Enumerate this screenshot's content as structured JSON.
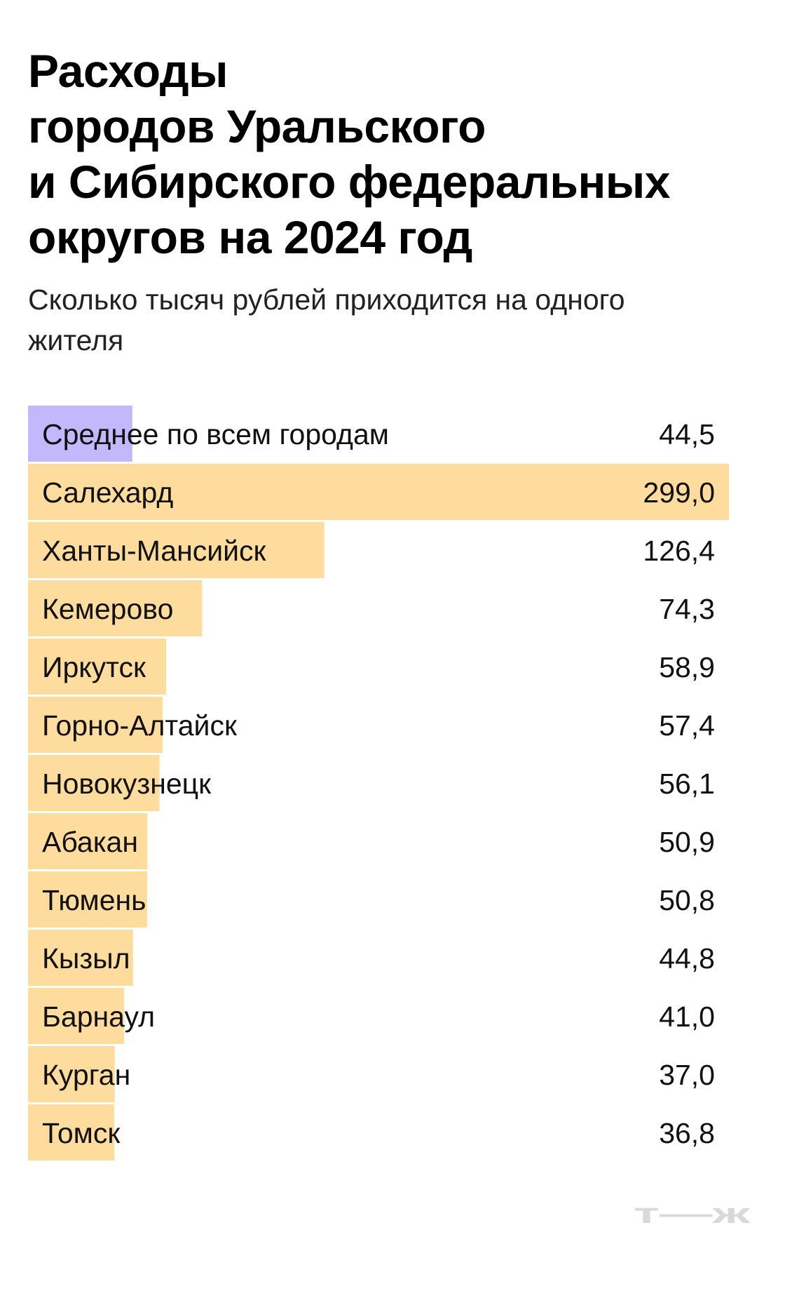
{
  "title_lines": [
    "Расходы",
    "городов Уральского",
    "и Сибирского федеральных",
    "округов на 2024 год"
  ],
  "subtitle_lines": [
    "Сколько тысяч рублей приходится на одного",
    "жителя"
  ],
  "logo": "т—ж",
  "colors": {
    "average_bar": "#c3b8fb",
    "city_bar": "#fddc9d",
    "text": "#111111",
    "logo": "#d9d9d9"
  },
  "chart_data": {
    "type": "bar",
    "orientation": "horizontal",
    "categories": [
      "Среднее по всем городам",
      "Салехард",
      "Ханты-Мансийск",
      "Кемерово",
      "Иркутск",
      "Горно-Алтайск",
      "Новокузнецк",
      "Абакан",
      "Тюмень",
      "Кызыл",
      "Барнаул",
      "Курган",
      "Томск"
    ],
    "values": [
      44.5,
      299.0,
      126.4,
      74.3,
      58.9,
      57.4,
      56.1,
      50.9,
      50.8,
      44.8,
      41.0,
      37.0,
      36.8
    ],
    "value_labels": [
      "44,5",
      "299,0",
      "126,4",
      "74,3",
      "58,9",
      "57,4",
      "56,1",
      "50,9",
      "50,8",
      "44,8",
      "41,0",
      "37,0",
      "36,8"
    ],
    "highlight_index": 0,
    "xlim": [
      0,
      299.0
    ],
    "grid": false,
    "legend": "none"
  }
}
